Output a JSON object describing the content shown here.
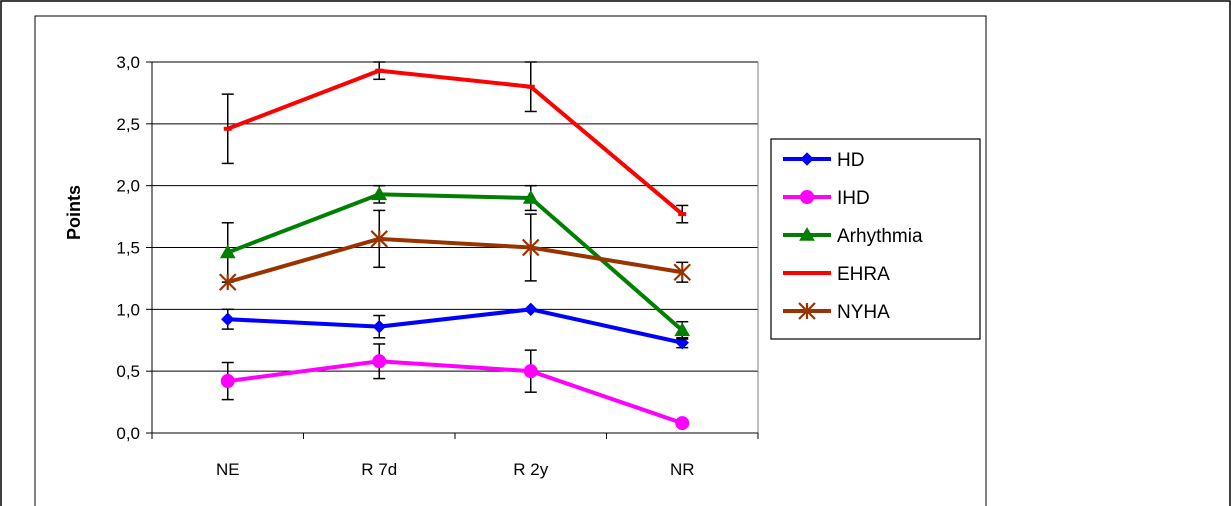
{
  "chart_data": {
    "type": "line",
    "title": "",
    "xlabel": "",
    "ylabel": "Points",
    "categories": [
      "NE",
      "R 7d",
      "R 2y",
      "NR"
    ],
    "ylim": [
      0,
      3
    ],
    "yticks": [
      "0,0",
      "0,5",
      "1,0",
      "1,5",
      "2,0",
      "2,5",
      "3,0"
    ],
    "grid": true,
    "legend_position": "right",
    "series": [
      {
        "name": "HD",
        "color": "#0000FF",
        "marker": "diamond",
        "values": [
          0.92,
          0.86,
          1.0,
          0.73
        ],
        "errors": [
          0.08,
          0.09,
          0.0,
          0.04
        ]
      },
      {
        "name": "IHD",
        "color": "#FF00FF",
        "marker": "circle",
        "values": [
          0.42,
          0.58,
          0.5,
          0.08
        ],
        "errors": [
          0.15,
          0.14,
          0.17,
          0.0
        ]
      },
      {
        "name": "Arhythmia",
        "color": "#008000",
        "marker": "triangle",
        "values": [
          1.46,
          1.93,
          1.9,
          0.83
        ],
        "errors": [
          0.24,
          0.07,
          0.1,
          0.07
        ]
      },
      {
        "name": "EHRA",
        "color": "#FF0000",
        "marker": "dash",
        "values": [
          2.46,
          2.93,
          2.8,
          1.77
        ],
        "errors": [
          0.28,
          0.07,
          0.2,
          0.07
        ]
      },
      {
        "name": "NYHA",
        "color": "#993300",
        "marker": "asterisk",
        "values": [
          1.22,
          1.57,
          1.5,
          1.3
        ],
        "errors": [
          0.0,
          0.23,
          0.27,
          0.08
        ]
      }
    ]
  }
}
